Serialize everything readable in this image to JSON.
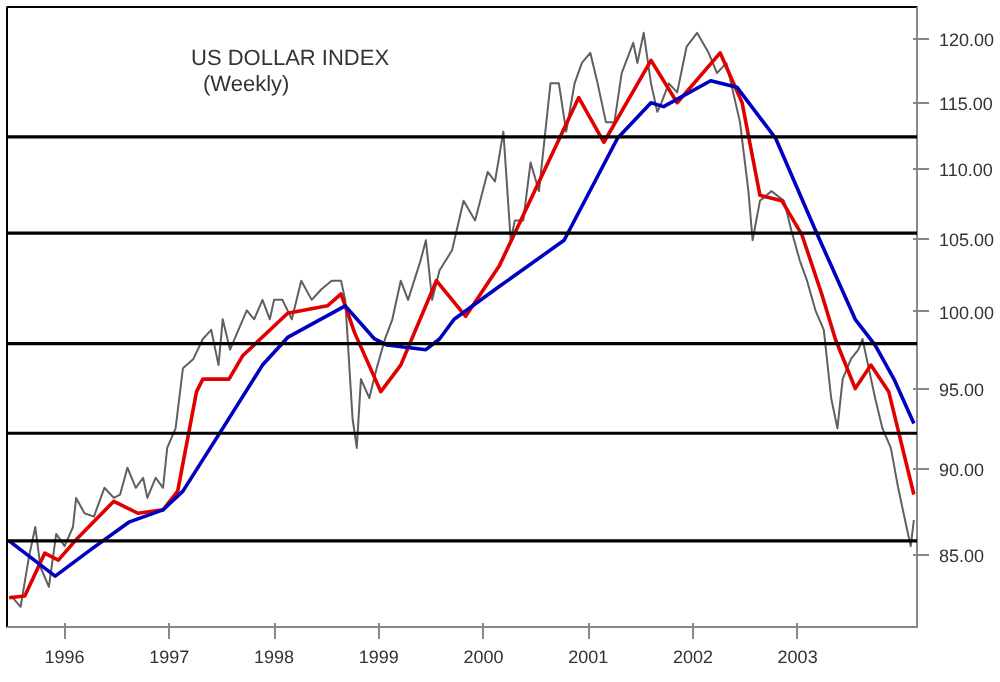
{
  "chart_data": {
    "type": "line",
    "title": "US DOLLAR INDEX",
    "subtitle": "(Weekly)",
    "log": true,
    "grid": false,
    "line_style": "solid",
    "marker": "none",
    "xlim": [
      1995.45,
      2004.14
    ],
    "ylim": [
      81.0,
      122.6
    ],
    "xticks": [
      1996,
      1997,
      1998,
      1999,
      2000,
      2001,
      2002,
      2003
    ],
    "yticks": [
      {
        "value": 85,
        "label": "85.00"
      },
      {
        "value": 90,
        "label": "90.00"
      },
      {
        "value": 95,
        "label": "95.00"
      },
      {
        "value": 100,
        "label": "100.00"
      },
      {
        "value": 105,
        "label": "105.00"
      },
      {
        "value": 110,
        "label": "110.00"
      },
      {
        "value": 115,
        "label": "115.00"
      },
      {
        "value": 120,
        "label": "120.00"
      }
    ],
    "ref_lines": [
      {
        "axis": "y",
        "value": 112.4,
        "color": "#000000"
      },
      {
        "axis": "y",
        "value": 105.4,
        "color": "#000000"
      },
      {
        "axis": "y",
        "value": 97.9,
        "color": "#000000"
      },
      {
        "axis": "y",
        "value": 92.2,
        "color": "#000000"
      },
      {
        "axis": "y",
        "value": 85.8,
        "color": "#000000"
      }
    ],
    "series": [
      {
        "color": "#606060",
        "x": [
          1995.49,
          1995.58,
          1995.66,
          1995.72,
          1995.77,
          1995.85,
          1995.92,
          1996.0,
          1996.08,
          1996.11,
          1996.19,
          1996.28,
          1996.38,
          1996.47,
          1996.53,
          1996.6,
          1996.68,
          1996.75,
          1996.79,
          1996.87,
          1996.94,
          1996.98,
          1997.06,
          1997.13,
          1997.23,
          1997.32,
          1997.4,
          1997.47,
          1997.51,
          1997.58,
          1997.66,
          1997.74,
          1997.81,
          1997.89,
          1997.96,
          1998.0,
          1998.08,
          1998.17,
          1998.26,
          1998.36,
          1998.45,
          1998.55,
          1998.64,
          1998.68,
          1998.75,
          1998.79,
          1998.83,
          1998.91,
          1998.98,
          1999.06,
          1999.13,
          1999.21,
          1999.28,
          1999.4,
          1999.45,
          1999.51,
          1999.58,
          1999.7,
          1999.81,
          1999.92,
          2000.04,
          2000.11,
          2000.19,
          2000.26,
          2000.3,
          2000.38,
          2000.45,
          2000.53,
          2000.64,
          2000.72,
          2000.79,
          2000.87,
          2000.94,
          2001.02,
          2001.09,
          2001.17,
          2001.25,
          2001.32,
          2001.43,
          2001.47,
          2001.53,
          2001.6,
          2001.66,
          2001.7,
          2001.77,
          2001.85,
          2001.94,
          2002.04,
          2002.15,
          2002.23,
          2002.32,
          2002.45,
          2002.53,
          2002.57,
          2002.64,
          2002.75,
          2002.87,
          2002.94,
          2003.02,
          2003.09,
          2003.17,
          2003.25,
          2003.32,
          2003.38,
          2003.43,
          2003.51,
          2003.58,
          2003.62,
          2003.66,
          2003.74,
          2003.81,
          2003.89,
          2003.96,
          2004.04,
          2004.08,
          2004.11
        ],
        "values": [
          82.7,
          82.1,
          84.9,
          86.6,
          84.3,
          83.2,
          86.2,
          85.5,
          86.6,
          88.3,
          87.4,
          87.2,
          88.9,
          88.3,
          88.5,
          90.1,
          88.9,
          89.5,
          88.3,
          89.5,
          88.9,
          91.3,
          92.5,
          96.3,
          96.9,
          98.2,
          98.8,
          96.5,
          99.5,
          97.5,
          98.8,
          100.1,
          99.5,
          100.8,
          99.5,
          100.8,
          100.8,
          99.5,
          102.1,
          100.8,
          101.5,
          102.1,
          102.1,
          100.8,
          93.1,
          91.3,
          95.6,
          94.4,
          96.3,
          98.2,
          99.5,
          102.1,
          100.8,
          103.5,
          104.9,
          100.8,
          102.8,
          104.2,
          107.7,
          106.3,
          109.8,
          109.1,
          112.8,
          104.9,
          106.3,
          106.3,
          110.5,
          108.4,
          116.5,
          116.5,
          112.8,
          116.5,
          118.1,
          118.9,
          116.5,
          113.5,
          113.5,
          117.3,
          119.7,
          118.1,
          120.5,
          116.5,
          114.3,
          115.0,
          116.5,
          115.8,
          119.4,
          120.5,
          118.9,
          117.3,
          118.1,
          113.5,
          108.4,
          104.9,
          107.7,
          108.4,
          107.7,
          105.6,
          103.5,
          102.1,
          100.1,
          98.8,
          94.4,
          92.5,
          95.6,
          96.9,
          97.5,
          98.2,
          96.9,
          94.4,
          92.5,
          91.3,
          88.9,
          86.6,
          85.5,
          87.0
        ]
      },
      {
        "color": "#e00000",
        "x": [
          1995.47,
          1995.62,
          1995.81,
          1995.94,
          1996.13,
          1996.47,
          1996.7,
          1996.94,
          1997.08,
          1997.26,
          1997.32,
          1997.57,
          1997.7,
          1998.13,
          1998.51,
          1998.64,
          1998.77,
          1999.02,
          1999.21,
          1999.55,
          1999.83,
          2000.15,
          2000.91,
          2001.15,
          2001.6,
          2001.85,
          2002.26,
          2002.47,
          2002.64,
          2002.85,
          2003.04,
          2003.23,
          2003.36,
          2003.55,
          2003.7,
          2003.87,
          2004.11
        ],
        "values": [
          82.6,
          82.7,
          85.1,
          84.7,
          86.0,
          88.1,
          87.4,
          87.6,
          88.7,
          94.8,
          95.6,
          95.6,
          97.1,
          99.9,
          100.4,
          101.2,
          98.6,
          94.8,
          96.5,
          102.1,
          99.7,
          103.1,
          115.4,
          112.0,
          118.3,
          115.0,
          118.9,
          115.0,
          108.1,
          107.7,
          105.3,
          101.2,
          98.2,
          95.0,
          96.5,
          94.8,
          88.5
        ]
      },
      {
        "color": "#0000c0",
        "x": [
          1995.47,
          1995.91,
          1996.25,
          1996.62,
          1996.94,
          1997.13,
          1997.51,
          1997.89,
          1998.13,
          1998.68,
          1998.96,
          1999.08,
          1999.45,
          1999.58,
          1999.72,
          2000.15,
          2000.77,
          2001.28,
          2001.6,
          2001.72,
          2002.17,
          2002.42,
          2002.79,
          2003.17,
          2003.55,
          2003.74,
          2003.92,
          2004.11
        ],
        "values": [
          85.8,
          83.8,
          85.3,
          86.9,
          87.6,
          88.7,
          92.5,
          96.5,
          98.3,
          100.4,
          98.2,
          97.8,
          97.5,
          98.2,
          99.5,
          101.7,
          104.9,
          112.3,
          115.0,
          114.7,
          116.7,
          116.2,
          112.3,
          105.6,
          99.5,
          97.8,
          95.6,
          92.8
        ]
      }
    ]
  }
}
